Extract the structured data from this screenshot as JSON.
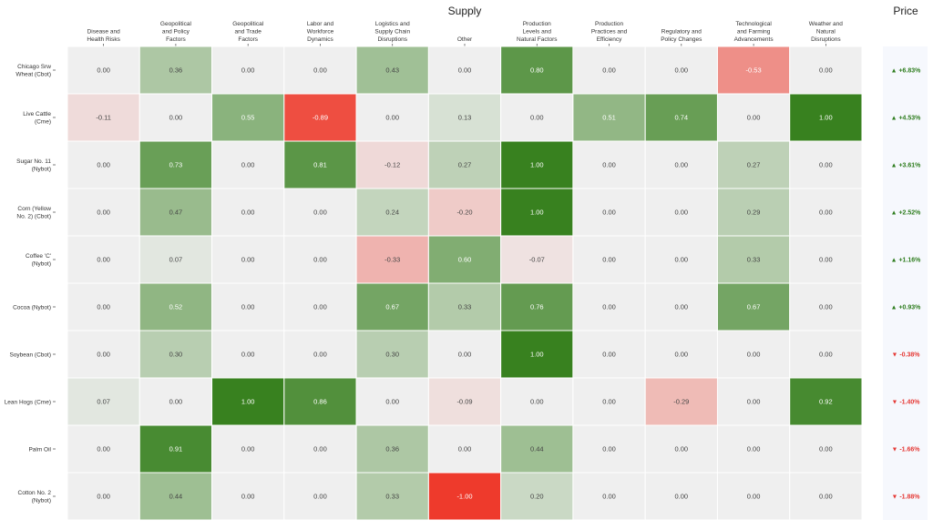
{
  "chart_data": {
    "type": "heatmap",
    "title": "Supply",
    "side_title": "Price",
    "columns": [
      "Disease and\nHealth Risks",
      "Geopolitical\nand Policy\nFactors",
      "Geopolitical\nand Trade\nFactors",
      "Labor and\nWorkforce\nDynamics",
      "Logistics and\nSupply Chain\nDisruptions",
      "Other",
      "Production\nLevels and\nNatural Factors",
      "Production\nPractices and\nEfficiency",
      "Regulatory and\nPolicy Changes",
      "Technological\nand Farming\nAdvancements",
      "Weather and\nNatural\nDisruptions"
    ],
    "rows": [
      "Chicago Srw\nWheat (Cbot)",
      "Live Cattle\n(Cme)",
      "Sugar No. 11\n(Nybot)",
      "Corn (Yellow\nNo. 2) (Cbot)",
      "Coffee 'C'\n(Nybot)",
      "Cocoa (Nybot)",
      "Soybean (Cbot)",
      "Lean Hogs (Cme)",
      "Palm Oil",
      "Cotton No. 2\n(Nybot)"
    ],
    "values": [
      [
        0.0,
        0.36,
        0.0,
        0.0,
        0.43,
        0.0,
        0.8,
        0.0,
        0.0,
        -0.53,
        0.0
      ],
      [
        -0.11,
        0.0,
        0.55,
        -0.89,
        0.0,
        0.13,
        0.0,
        0.51,
        0.74,
        0.0,
        1.0
      ],
      [
        0.0,
        0.73,
        0.0,
        0.81,
        -0.12,
        0.27,
        1.0,
        0.0,
        0.0,
        0.27,
        0.0
      ],
      [
        0.0,
        0.47,
        0.0,
        0.0,
        0.24,
        -0.2,
        1.0,
        0.0,
        0.0,
        0.29,
        0.0
      ],
      [
        0.0,
        0.07,
        0.0,
        0.0,
        -0.33,
        0.6,
        -0.07,
        0.0,
        0.0,
        0.33,
        0.0
      ],
      [
        0.0,
        0.52,
        0.0,
        0.0,
        0.67,
        0.33,
        0.76,
        0.0,
        0.0,
        0.67,
        0.0
      ],
      [
        0.0,
        0.3,
        0.0,
        0.0,
        0.3,
        0.0,
        1.0,
        0.0,
        0.0,
        0.0,
        0.0
      ],
      [
        0.07,
        0.0,
        1.0,
        0.86,
        0.0,
        -0.09,
        0.0,
        0.0,
        -0.29,
        0.0,
        0.92
      ],
      [
        0.0,
        0.91,
        0.0,
        0.0,
        0.36,
        0.0,
        0.44,
        0.0,
        0.0,
        0.0,
        0.0
      ],
      [
        0.0,
        0.44,
        0.0,
        0.0,
        0.33,
        -1.0,
        0.2,
        0.0,
        0.0,
        0.0,
        0.0
      ]
    ],
    "price_changes": [
      "+6.83%",
      "+4.53%",
      "+3.61%",
      "+2.52%",
      "+1.16%",
      "+0.93%",
      "-0.38%",
      "-1.40%",
      "-1.66%",
      "-1.88%"
    ],
    "value_range": [
      -1,
      1
    ],
    "colors": {
      "positive": "#38811f",
      "negative": "#ee3a2c",
      "neutral": "#efefef",
      "price_up": "#2e7d1e",
      "price_down": "#e53935",
      "price_panel_bg": "#f6f8fd"
    }
  }
}
